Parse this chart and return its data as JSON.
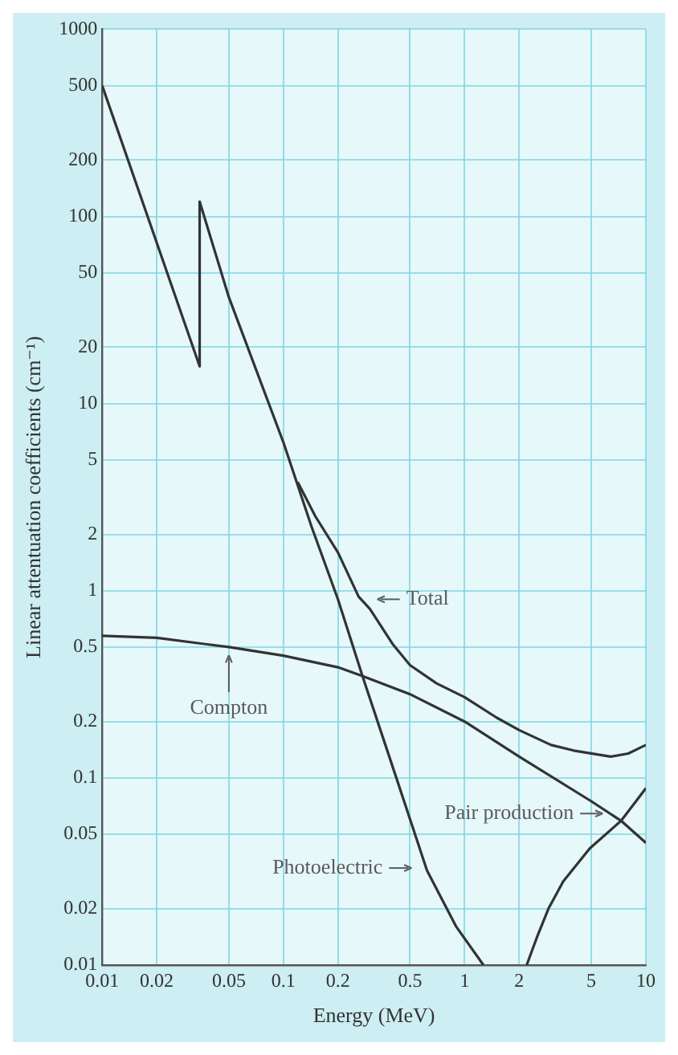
{
  "chart_data": {
    "type": "line",
    "xlabel": "Energy (MeV)",
    "ylabel": "Linear attentuation coefficients (cm⁻¹)",
    "log": "xy",
    "xlim": [
      0.01,
      10
    ],
    "xticks": [
      0.01,
      0.02,
      0.05,
      0.1,
      0.2,
      0.5,
      1,
      2,
      5,
      10
    ],
    "ylim": [
      0.01,
      1000
    ],
    "yticks": [
      0.01,
      0.02,
      0.05,
      0.1,
      0.2,
      0.5,
      1,
      2,
      5,
      10,
      20,
      50,
      100,
      200,
      500,
      1000
    ],
    "grid": true,
    "legend": false,
    "marker": "none",
    "line_style": "solid",
    "series": [
      {
        "color": "#333333",
        "x": [
          0.01,
          0.0345,
          0.0345,
          0.05,
          0.1,
          0.143,
          0.2,
          0.273,
          0.42,
          0.62,
          0.9,
          1.27
        ],
        "values": [
          500,
          15.8,
          120,
          37,
          6.2,
          2.2,
          0.9,
          0.35,
          0.1,
          0.032,
          0.016,
          0.01
        ]
      },
      {
        "color": "#333333",
        "x": [
          0.12,
          0.15,
          0.2,
          0.26,
          0.3,
          0.4,
          0.5,
          0.7,
          1,
          1.5,
          2,
          3,
          4,
          6.4,
          8,
          10
        ],
        "values": [
          3.8,
          2.5,
          1.6,
          0.93,
          0.8,
          0.52,
          0.4,
          0.32,
          0.27,
          0.21,
          0.18,
          0.15,
          0.14,
          0.13,
          0.135,
          0.15
        ]
      },
      {
        "color": "#333333",
        "x": [
          0.01,
          0.02,
          0.05,
          0.1,
          0.2,
          0.273,
          0.5,
          1,
          2,
          5,
          7.3,
          10
        ],
        "values": [
          0.575,
          0.56,
          0.5,
          0.45,
          0.39,
          0.35,
          0.28,
          0.2,
          0.13,
          0.075,
          0.059,
          0.045
        ]
      },
      {
        "color": "#333333",
        "x": [
          2.2,
          2.5,
          2.9,
          3.5,
          4.9,
          7.3,
          10
        ],
        "values": [
          0.01,
          0.014,
          0.02,
          0.028,
          0.042,
          0.059,
          0.088
        ]
      }
    ],
    "annotations": [
      {
        "text": "Total",
        "x": 0.28,
        "y": 0.9
      },
      {
        "text": "Compton",
        "x": 0.05,
        "y": 0.48
      },
      {
        "text": "Photoelectric",
        "x": 0.6,
        "y": 0.033
      },
      {
        "text": "Pair production",
        "x": 6.8,
        "y": 0.062
      }
    ]
  }
}
